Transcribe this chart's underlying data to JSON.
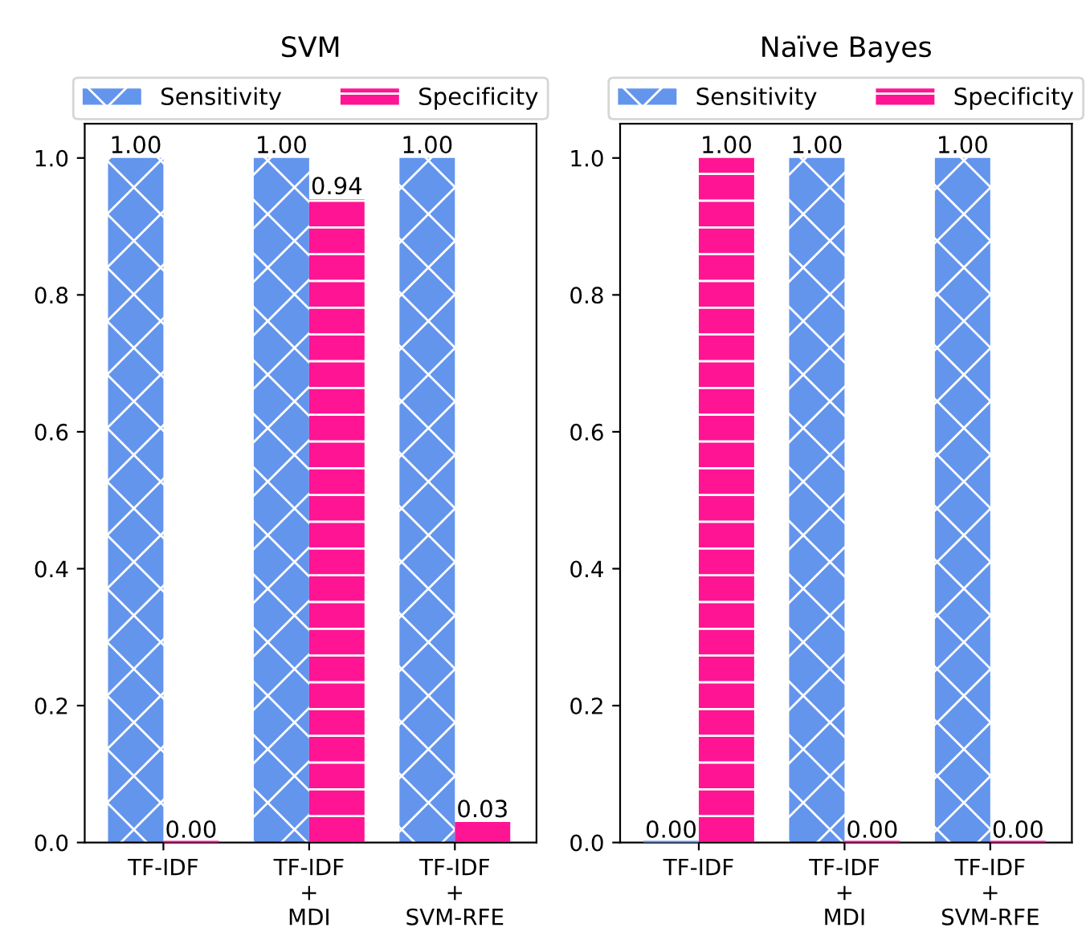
{
  "chart_data": [
    {
      "type": "bar",
      "title": "SVM",
      "categories": [
        "TF-IDF",
        "TF-IDF\n+\nMDI",
        "TF-IDF\n+\nSVM-RFE"
      ],
      "ylim": [
        0,
        1.05
      ],
      "yticks": [
        {
          "value": 0,
          "label": "0.0"
        },
        {
          "value": 0.2,
          "label": "0.2"
        },
        {
          "value": 0.4,
          "label": "0.4"
        },
        {
          "value": 0.6,
          "label": "0.6"
        },
        {
          "value": 0.8,
          "label": "0.8"
        },
        {
          "value": 1,
          "label": "1.0"
        }
      ],
      "legend": "top",
      "grid": false,
      "series": [
        {
          "name": "Sensitivity",
          "color": "#6495ed",
          "values": [
            1.0,
            1.0,
            1.0
          ],
          "value_labels": [
            "1.00",
            "1.00",
            "1.00"
          ]
        },
        {
          "name": "Specificity",
          "color": "#ff1493",
          "values": [
            0.0,
            0.94,
            0.03
          ],
          "value_labels": [
            "0.00",
            "0.94",
            "0.03"
          ]
        }
      ]
    },
    {
      "type": "bar",
      "title": "Naïve Bayes",
      "categories": [
        "TF-IDF",
        "TF-IDF\n+\nMDI",
        "TF-IDF\n+\nSVM-RFE"
      ],
      "ylim": [
        0,
        1.05
      ],
      "yticks": [
        {
          "value": 0,
          "label": "0.0"
        },
        {
          "value": 0.2,
          "label": "0.2"
        },
        {
          "value": 0.4,
          "label": "0.4"
        },
        {
          "value": 0.6,
          "label": "0.6"
        },
        {
          "value": 0.8,
          "label": "0.8"
        },
        {
          "value": 1,
          "label": "1.0"
        }
      ],
      "legend": "top",
      "grid": false,
      "series": [
        {
          "name": "Sensitivity",
          "color": "#6495ed",
          "values": [
            0.0,
            1.0,
            1.0
          ],
          "value_labels": [
            "0.00",
            "1.00",
            "1.00"
          ]
        },
        {
          "name": "Specificity",
          "color": "#ff1493",
          "values": [
            1.0,
            0.0,
            0.0
          ],
          "value_labels": [
            "1.00",
            "0.00",
            "0.00"
          ]
        }
      ]
    }
  ]
}
